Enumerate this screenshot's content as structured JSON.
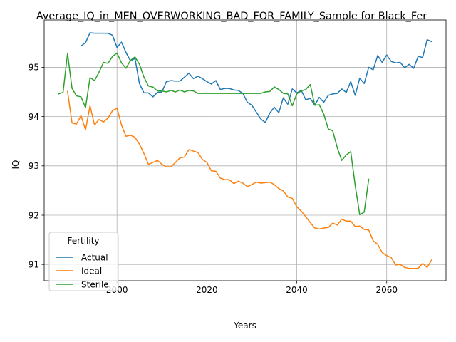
{
  "chart_data": {
    "type": "line",
    "title": "Average_IQ_in_MEN_OVERWORKING_BAD_FOR_FAMILY_Sample for Black_Fer",
    "xlabel": "Years",
    "ylabel": "IQ",
    "xlim": [
      1983.8,
      2073.2
    ],
    "ylim": [
      90.67,
      95.96
    ],
    "x_ticks": [
      2000,
      2020,
      2040,
      2060
    ],
    "y_ticks": [
      91,
      92,
      93,
      94,
      95
    ],
    "grid": true,
    "legend": {
      "title": "Fertility",
      "placement": "lower-left"
    },
    "series": [
      {
        "name": "Actual",
        "color": "#1f77b4",
        "points": [
          [
            1992,
            95.43
          ],
          [
            1993,
            95.5
          ],
          [
            1994,
            95.7
          ],
          [
            1995,
            95.69
          ],
          [
            1996,
            95.69
          ],
          [
            1997,
            95.69
          ],
          [
            1998,
            95.69
          ],
          [
            1999,
            95.65
          ],
          [
            2000,
            95.4
          ],
          [
            2001,
            95.51
          ],
          [
            2002,
            95.3
          ],
          [
            2003,
            95.13
          ],
          [
            2004,
            95.18
          ],
          [
            2005,
            94.67
          ],
          [
            2006,
            94.48
          ],
          [
            2007,
            94.48
          ],
          [
            2008,
            94.4
          ],
          [
            2009,
            94.49
          ],
          [
            2010,
            94.5
          ],
          [
            2011,
            94.71
          ],
          [
            2012,
            94.73
          ],
          [
            2013,
            94.72
          ],
          [
            2014,
            94.72
          ],
          [
            2015,
            94.8
          ],
          [
            2016,
            94.88
          ],
          [
            2017,
            94.77
          ],
          [
            2018,
            94.82
          ],
          [
            2019,
            94.77
          ],
          [
            2020,
            94.71
          ],
          [
            2021,
            94.66
          ],
          [
            2022,
            94.73
          ],
          [
            2023,
            94.55
          ],
          [
            2024,
            94.57
          ],
          [
            2025,
            94.57
          ],
          [
            2026,
            94.54
          ],
          [
            2027,
            94.53
          ],
          [
            2028,
            94.47
          ],
          [
            2029,
            94.29
          ],
          [
            2030,
            94.23
          ],
          [
            2031,
            94.09
          ],
          [
            2032,
            93.95
          ],
          [
            2033,
            93.88
          ],
          [
            2034,
            94.07
          ],
          [
            2035,
            94.19
          ],
          [
            2036,
            94.08
          ],
          [
            2037,
            94.38
          ],
          [
            2038,
            94.25
          ],
          [
            2039,
            94.56
          ],
          [
            2040,
            94.48
          ],
          [
            2041,
            94.53
          ],
          [
            2042,
            94.34
          ],
          [
            2043,
            94.37
          ],
          [
            2044,
            94.23
          ],
          [
            2045,
            94.39
          ],
          [
            2046,
            94.29
          ],
          [
            2047,
            94.43
          ],
          [
            2048,
            94.46
          ],
          [
            2049,
            94.47
          ],
          [
            2050,
            94.56
          ],
          [
            2051,
            94.49
          ],
          [
            2052,
            94.71
          ],
          [
            2053,
            94.43
          ],
          [
            2054,
            94.78
          ],
          [
            2055,
            94.67
          ],
          [
            2056,
            95.0
          ],
          [
            2057,
            94.95
          ],
          [
            2058,
            95.24
          ],
          [
            2059,
            95.1
          ],
          [
            2060,
            95.25
          ],
          [
            2061,
            95.12
          ],
          [
            2062,
            95.09
          ],
          [
            2063,
            95.1
          ],
          [
            2064,
            94.99
          ],
          [
            2065,
            95.06
          ],
          [
            2066,
            94.98
          ],
          [
            2067,
            95.22
          ],
          [
            2068,
            95.2
          ],
          [
            2069,
            95.56
          ],
          [
            2070,
            95.52
          ]
        ]
      },
      {
        "name": "Ideal",
        "color": "#ff7f0e",
        "points": [
          [
            1989,
            94.51
          ],
          [
            1990,
            93.87
          ],
          [
            1991,
            93.85
          ],
          [
            1992,
            94.02
          ],
          [
            1993,
            93.73
          ],
          [
            1994,
            94.22
          ],
          [
            1995,
            93.83
          ],
          [
            1996,
            93.94
          ],
          [
            1997,
            93.89
          ],
          [
            1998,
            93.97
          ],
          [
            1999,
            94.12
          ],
          [
            2000,
            94.17
          ],
          [
            2001,
            93.83
          ],
          [
            2002,
            93.6
          ],
          [
            2003,
            93.62
          ],
          [
            2004,
            93.58
          ],
          [
            2005,
            93.44
          ],
          [
            2006,
            93.25
          ],
          [
            2007,
            93.03
          ],
          [
            2008,
            93.07
          ],
          [
            2009,
            93.11
          ],
          [
            2010,
            93.03
          ],
          [
            2011,
            92.98
          ],
          [
            2012,
            92.98
          ],
          [
            2013,
            93.07
          ],
          [
            2014,
            93.16
          ],
          [
            2015,
            93.18
          ],
          [
            2016,
            93.33
          ],
          [
            2017,
            93.3
          ],
          [
            2018,
            93.27
          ],
          [
            2019,
            93.13
          ],
          [
            2020,
            93.07
          ],
          [
            2021,
            92.9
          ],
          [
            2022,
            92.89
          ],
          [
            2023,
            92.75
          ],
          [
            2024,
            92.72
          ],
          [
            2025,
            92.72
          ],
          [
            2026,
            92.64
          ],
          [
            2027,
            92.69
          ],
          [
            2028,
            92.65
          ],
          [
            2029,
            92.58
          ],
          [
            2030,
            92.62
          ],
          [
            2031,
            92.67
          ],
          [
            2032,
            92.65
          ],
          [
            2033,
            92.66
          ],
          [
            2034,
            92.67
          ],
          [
            2035,
            92.62
          ],
          [
            2036,
            92.54
          ],
          [
            2037,
            92.49
          ],
          [
            2038,
            92.37
          ],
          [
            2039,
            92.34
          ],
          [
            2040,
            92.17
          ],
          [
            2041,
            92.08
          ],
          [
            2042,
            91.97
          ],
          [
            2043,
            91.85
          ],
          [
            2044,
            91.74
          ],
          [
            2045,
            91.72
          ],
          [
            2046,
            91.74
          ],
          [
            2047,
            91.75
          ],
          [
            2048,
            91.84
          ],
          [
            2049,
            91.8
          ],
          [
            2050,
            91.92
          ],
          [
            2051,
            91.88
          ],
          [
            2052,
            91.88
          ],
          [
            2053,
            91.77
          ],
          [
            2054,
            91.78
          ],
          [
            2055,
            91.71
          ],
          [
            2056,
            91.7
          ],
          [
            2057,
            91.48
          ],
          [
            2058,
            91.41
          ],
          [
            2059,
            91.24
          ],
          [
            2060,
            91.18
          ],
          [
            2061,
            91.14
          ],
          [
            2062,
            90.99
          ],
          [
            2063,
            91.0
          ],
          [
            2064,
            90.94
          ],
          [
            2065,
            90.92
          ],
          [
            2066,
            90.92
          ],
          [
            2067,
            90.92
          ],
          [
            2068,
            91.02
          ],
          [
            2069,
            90.94
          ],
          [
            2070,
            91.09
          ]
        ]
      },
      {
        "name": "Sterile",
        "color": "#2ca02c",
        "points": [
          [
            1987,
            94.46
          ],
          [
            1988,
            94.49
          ],
          [
            1989,
            95.28
          ],
          [
            1990,
            94.57
          ],
          [
            1991,
            94.42
          ],
          [
            1992,
            94.4
          ],
          [
            1993,
            94.18
          ],
          [
            1994,
            94.79
          ],
          [
            1995,
            94.73
          ],
          [
            1996,
            94.9
          ],
          [
            1997,
            95.1
          ],
          [
            1998,
            95.08
          ],
          [
            1999,
            95.22
          ],
          [
            2000,
            95.29
          ],
          [
            2001,
            95.09
          ],
          [
            2002,
            94.98
          ],
          [
            2003,
            95.14
          ],
          [
            2004,
            95.21
          ],
          [
            2005,
            95.06
          ],
          [
            2006,
            94.8
          ],
          [
            2007,
            94.62
          ],
          [
            2008,
            94.6
          ],
          [
            2009,
            94.52
          ],
          [
            2010,
            94.52
          ],
          [
            2011,
            94.5
          ],
          [
            2012,
            94.53
          ],
          [
            2013,
            94.5
          ],
          [
            2014,
            94.54
          ],
          [
            2015,
            94.5
          ],
          [
            2016,
            94.53
          ],
          [
            2017,
            94.52
          ],
          [
            2018,
            94.47
          ],
          [
            2019,
            94.47
          ],
          [
            2020,
            94.47
          ],
          [
            2021,
            94.47
          ],
          [
            2022,
            94.47
          ],
          [
            2023,
            94.47
          ],
          [
            2024,
            94.47
          ],
          [
            2025,
            94.47
          ],
          [
            2026,
            94.47
          ],
          [
            2027,
            94.47
          ],
          [
            2028,
            94.47
          ],
          [
            2029,
            94.47
          ],
          [
            2030,
            94.47
          ],
          [
            2031,
            94.47
          ],
          [
            2032,
            94.47
          ],
          [
            2033,
            94.5
          ],
          [
            2034,
            94.51
          ],
          [
            2035,
            94.6
          ],
          [
            2036,
            94.55
          ],
          [
            2037,
            94.47
          ],
          [
            2038,
            94.46
          ],
          [
            2039,
            94.22
          ],
          [
            2040,
            94.46
          ],
          [
            2041,
            94.52
          ],
          [
            2042,
            94.55
          ],
          [
            2043,
            94.65
          ],
          [
            2044,
            94.23
          ],
          [
            2045,
            94.24
          ],
          [
            2046,
            94.05
          ],
          [
            2047,
            93.75
          ],
          [
            2048,
            93.71
          ],
          [
            2049,
            93.37
          ],
          [
            2050,
            93.11
          ],
          [
            2051,
            93.22
          ],
          [
            2052,
            93.29
          ],
          [
            2053,
            92.6
          ],
          [
            2054,
            92.01
          ],
          [
            2055,
            92.06
          ],
          [
            2056,
            92.73
          ]
        ]
      }
    ]
  }
}
